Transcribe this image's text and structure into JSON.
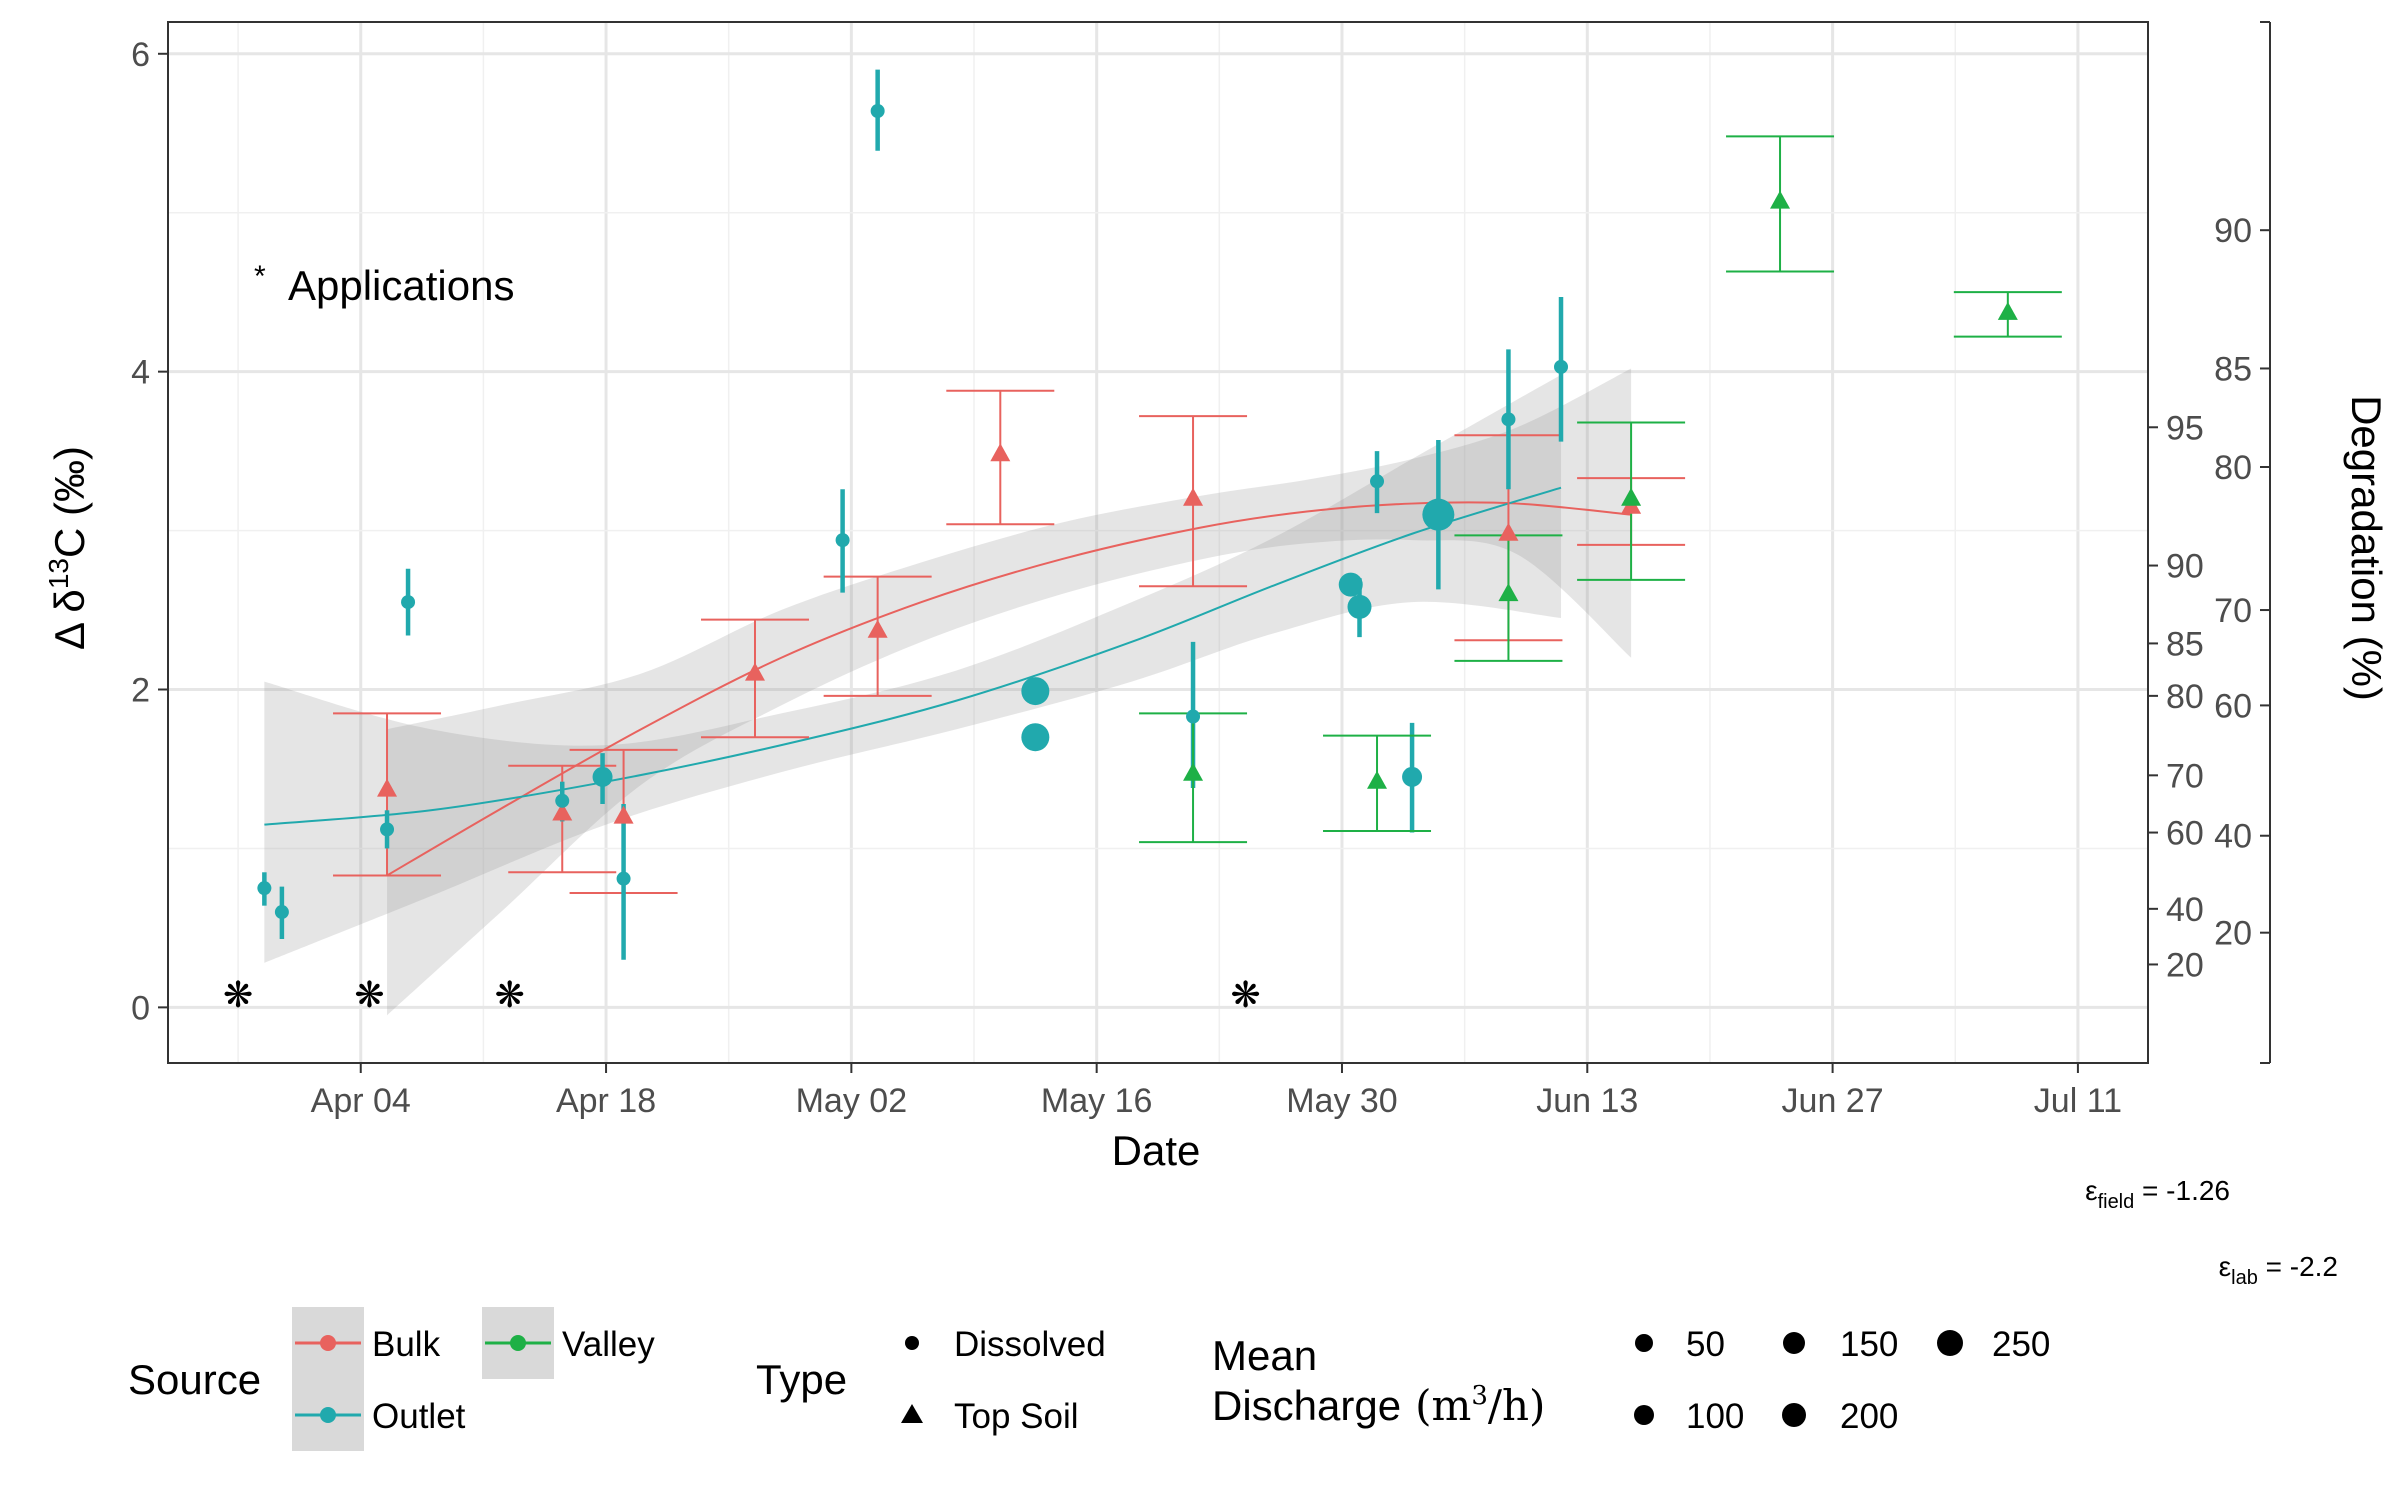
{
  "chart_data": {
    "type": "scatter",
    "xlabel": "Date",
    "ylabel": "Δ δ13C (‰)",
    "ylabel_parts": {
      "a": "Δ δ",
      "sup": "13",
      "b": "C (‰)"
    },
    "x_ticks": [
      "Apr 04",
      "Apr 18",
      "May 02",
      "May 16",
      "May 30",
      "Jun 13",
      "Jun 27",
      "Jul 11"
    ],
    "x_tick_days": [
      4,
      18,
      32,
      46,
      60,
      74,
      88,
      102
    ],
    "x_day_origin_note": "days counted from Mar 31",
    "xlim_days": [
      -7,
      106
    ],
    "y_ticks": [
      "0",
      "2",
      "4",
      "6"
    ],
    "ylim": [
      -0.35,
      6.2
    ],
    "secondary_axis_1": {
      "ticks": [
        {
          "label": "20",
          "y": 0.27
        },
        {
          "label": "40",
          "y": 0.62
        },
        {
          "label": "60",
          "y": 1.1
        },
        {
          "label": "70",
          "y": 1.46
        },
        {
          "label": "80",
          "y": 1.96
        },
        {
          "label": "85",
          "y": 2.29
        },
        {
          "label": "90",
          "y": 2.78
        },
        {
          "label": "95",
          "y": 3.65
        }
      ]
    },
    "secondary_axis_2": {
      "title": "Degradation (%)",
      "ticks": [
        {
          "label": "20",
          "y": 0.47
        },
        {
          "label": "40",
          "y": 1.08
        },
        {
          "label": "60",
          "y": 1.9
        },
        {
          "label": "70",
          "y": 2.5
        },
        {
          "label": "80",
          "y": 3.4
        },
        {
          "label": "85",
          "y": 4.02
        },
        {
          "label": "90",
          "y": 4.89
        }
      ]
    },
    "annotation": "Applications",
    "applications_days": [
      -3,
      4.5,
      12.5,
      54.5
    ],
    "applications_y": 0.09,
    "colors": {
      "Bulk": "#e8625e",
      "Outlet": "#21a9ad",
      "Valley": "#1eb046",
      "ribbon": "#999999"
    },
    "series": [
      {
        "name": "Bulk",
        "type": "Top Soil",
        "points": [
          {
            "x": 5.5,
            "y": 1.37,
            "lo": 0.83,
            "hi": 1.85
          },
          {
            "x": 15.5,
            "y": 1.22,
            "lo": 0.85,
            "hi": 1.52
          },
          {
            "x": 19.0,
            "y": 1.2,
            "lo": 0.72,
            "hi": 1.62
          },
          {
            "x": 26.5,
            "y": 2.1,
            "lo": 1.7,
            "hi": 2.44
          },
          {
            "x": 33.5,
            "y": 2.37,
            "lo": 1.96,
            "hi": 2.71
          },
          {
            "x": 40.5,
            "y": 3.48,
            "lo": 3.04,
            "hi": 3.88
          },
          {
            "x": 51.5,
            "y": 3.2,
            "lo": 2.65,
            "hi": 3.72
          },
          {
            "x": 69.5,
            "y": 2.98,
            "lo": 2.31,
            "hi": 3.6
          },
          {
            "x": 76.5,
            "y": 3.15,
            "lo": 2.91,
            "hi": 3.33
          }
        ],
        "fit": {
          "x": [
            5.5,
            12,
            20,
            28,
            36,
            44,
            52,
            58,
            64,
            70,
            76.5
          ],
          "y": [
            0.83,
            1.25,
            1.75,
            2.2,
            2.55,
            2.82,
            3.02,
            3.12,
            3.17,
            3.17,
            3.1
          ],
          "lo": [
            -0.05,
            0.6,
            1.4,
            1.9,
            2.3,
            2.6,
            2.82,
            2.92,
            2.94,
            2.85,
            2.2
          ],
          "hi": [
            1.75,
            1.9,
            2.1,
            2.5,
            2.8,
            3.05,
            3.22,
            3.32,
            3.45,
            3.65,
            4.02
          ]
        }
      },
      {
        "name": "Outlet",
        "type": "Dissolved",
        "points": [
          {
            "x": -1.5,
            "y": 0.75,
            "lo": 0.64,
            "hi": 0.85,
            "size": 50
          },
          {
            "x": -0.5,
            "y": 0.6,
            "lo": 0.43,
            "hi": 0.76,
            "size": 50
          },
          {
            "x": 5.5,
            "y": 1.12,
            "lo": 1.0,
            "hi": 1.24,
            "size": 50
          },
          {
            "x": 6.7,
            "y": 2.55,
            "lo": 2.34,
            "hi": 2.76,
            "size": 50
          },
          {
            "x": 15.5,
            "y": 1.3,
            "lo": 1.17,
            "hi": 1.42,
            "size": 50
          },
          {
            "x": 17.8,
            "y": 1.45,
            "lo": 1.28,
            "hi": 1.6,
            "size": 100
          },
          {
            "x": 19.0,
            "y": 0.81,
            "lo": 0.3,
            "hi": 1.28,
            "size": 50
          },
          {
            "x": 31.5,
            "y": 2.94,
            "lo": 2.61,
            "hi": 3.26,
            "size": 50
          },
          {
            "x": 33.5,
            "y": 5.64,
            "lo": 5.39,
            "hi": 5.9,
            "size": 50
          },
          {
            "x": 42.5,
            "y": 1.99,
            "lo": 1.99,
            "hi": 1.99,
            "size": 200
          },
          {
            "x": 42.5,
            "y": 1.7,
            "lo": 1.7,
            "hi": 1.7,
            "size": 200
          },
          {
            "x": 51.5,
            "y": 1.83,
            "lo": 1.38,
            "hi": 2.3,
            "size": 50
          },
          {
            "x": 60.5,
            "y": 2.66,
            "lo": 2.66,
            "hi": 2.66,
            "size": 150
          },
          {
            "x": 61.0,
            "y": 2.52,
            "lo": 2.33,
            "hi": 2.7,
            "size": 150
          },
          {
            "x": 62.0,
            "y": 3.31,
            "lo": 3.11,
            "hi": 3.5,
            "size": 50
          },
          {
            "x": 65.5,
            "y": 3.1,
            "lo": 2.63,
            "hi": 3.57,
            "size": 250
          },
          {
            "x": 64.0,
            "y": 1.45,
            "lo": 1.1,
            "hi": 1.79,
            "size": 100
          },
          {
            "x": 69.5,
            "y": 3.7,
            "lo": 3.26,
            "hi": 4.14,
            "size": 50
          },
          {
            "x": 72.5,
            "y": 4.03,
            "lo": 3.56,
            "hi": 4.47,
            "size": 50
          }
        ],
        "fit": {
          "x": [
            -1.5,
            8,
            18,
            28,
            38,
            48,
            56,
            64,
            72.5
          ],
          "y": [
            1.15,
            1.24,
            1.42,
            1.65,
            1.93,
            2.3,
            2.65,
            2.98,
            3.27
          ],
          "lo": [
            0.28,
            0.7,
            1.15,
            1.48,
            1.75,
            2.05,
            2.35,
            2.55,
            2.45
          ],
          "hi": [
            2.05,
            1.75,
            1.65,
            1.85,
            2.12,
            2.55,
            2.95,
            3.45,
            3.98
          ]
        }
      },
      {
        "name": "Valley",
        "type": "Top Soil",
        "points": [
          {
            "x": 51.5,
            "y": 1.47,
            "lo": 1.04,
            "hi": 1.85
          },
          {
            "x": 62.0,
            "y": 1.42,
            "lo": 1.11,
            "hi": 1.71
          },
          {
            "x": 69.5,
            "y": 2.6,
            "lo": 2.18,
            "hi": 2.97
          },
          {
            "x": 76.5,
            "y": 3.2,
            "lo": 2.69,
            "hi": 3.68
          },
          {
            "x": 85.0,
            "y": 5.07,
            "lo": 4.63,
            "hi": 5.48
          },
          {
            "x": 98.0,
            "y": 4.37,
            "lo": 4.22,
            "hi": 4.5
          }
        ]
      }
    ],
    "legend": {
      "source_title": "Source",
      "source_items": [
        "Bulk",
        "Outlet",
        "Valley"
      ],
      "type_title": "Type",
      "type_items": [
        "Dissolved",
        "Top Soil"
      ],
      "size_title_line1": "Mean",
      "size_title_line2": "Discharge",
      "size_unit_a": "(m",
      "size_unit_sup": "3",
      "size_unit_b": "/h)",
      "size_items": [
        "50",
        "150",
        "250",
        "100",
        "200"
      ]
    },
    "notes": {
      "eps_field": {
        "sym": "ε",
        "sub": "field",
        "val": " = -1.26"
      },
      "eps_lab": {
        "sym": "ε",
        "sub": "lab",
        "val": " = -2.2"
      }
    }
  }
}
